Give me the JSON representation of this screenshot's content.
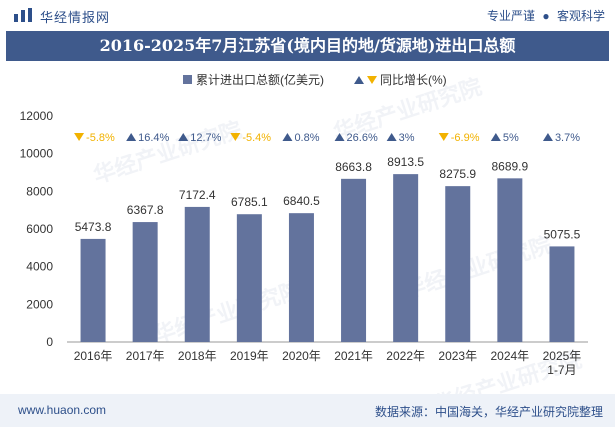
{
  "header": {
    "brand": "华经情报网",
    "tag_1": "专业严谨",
    "tag_2": "客观科学",
    "separator": "●"
  },
  "title": "2016-2025年7月江苏省(境内目的地/货源地)进出口总额",
  "watermark": "华经产业研究院",
  "footer": {
    "url": "www.huaon.com",
    "source": "数据来源：中国海关，华经产业研究院整理"
  },
  "colors": {
    "bar": "#63739d",
    "title_bg": "#3f5a8c",
    "up": "#3f5a8c",
    "down": "#f2b200",
    "brand": "#2d4f8a"
  },
  "chart_data": {
    "type": "bar",
    "categories": [
      "2016年",
      "2017年",
      "2018年",
      "2019年",
      "2020年",
      "2021年",
      "2022年",
      "2023年",
      "2024年",
      "2025年\n1-7月"
    ],
    "series": [
      {
        "name": "累计进出口总额(亿美元)",
        "values": [
          5473.8,
          6367.8,
          7172.4,
          6785.1,
          6840.5,
          8663.8,
          8913.5,
          8275.9,
          8689.9,
          5075.5
        ]
      },
      {
        "name": "同比增长(%)",
        "values": [
          -5.8,
          16.4,
          12.7,
          -5.4,
          0.8,
          26.6,
          3,
          -6.9,
          5,
          3.7
        ],
        "display": [
          "-5.8%",
          "16.4%",
          "12.7%",
          "-5.4%",
          "0.8%",
          "26.6%",
          "3%",
          "-6.9%",
          "5%",
          "3.7%"
        ]
      }
    ],
    "ylim": [
      0,
      12000
    ],
    "yticks": [
      0,
      2000,
      4000,
      6000,
      8000,
      10000,
      12000
    ],
    "legend_position": "top",
    "grid": false
  }
}
